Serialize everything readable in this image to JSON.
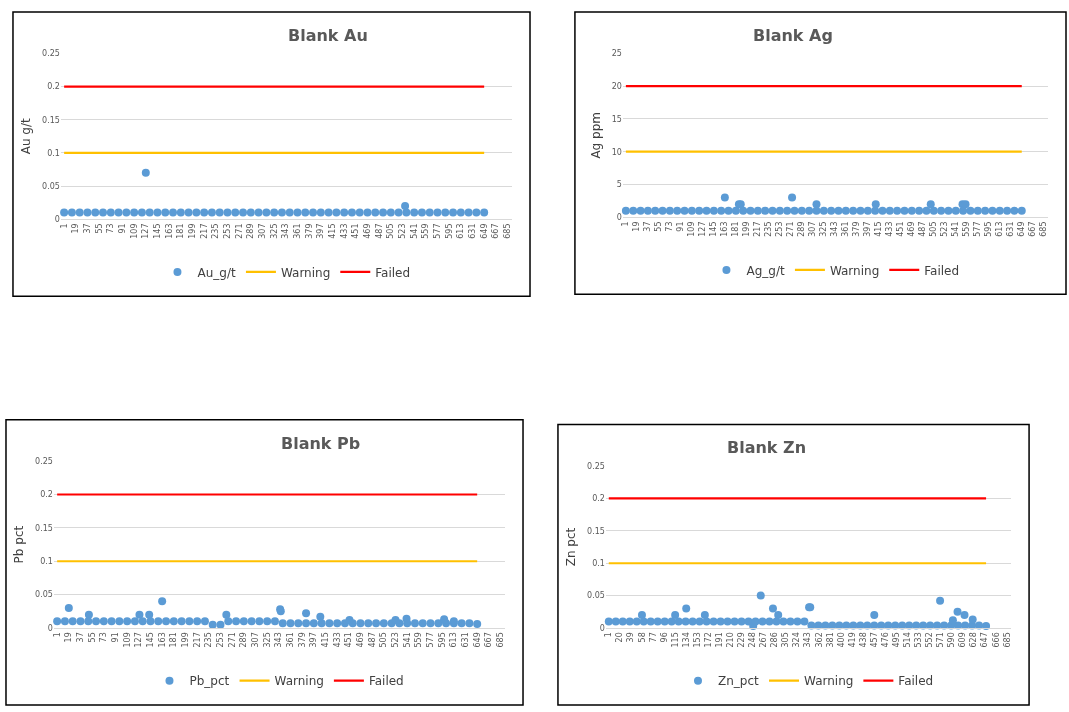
{
  "chart_data": [
    {
      "type": "scatter",
      "title": "Blank Au",
      "ylabel": "Au g/t",
      "xlim": [
        -4,
        692
      ],
      "xticks": [
        1,
        19,
        37,
        55,
        73,
        91,
        109,
        127,
        145,
        163,
        181,
        199,
        217,
        235,
        253,
        271,
        289,
        307,
        325,
        343,
        361,
        379,
        397,
        415,
        433,
        451,
        469,
        487,
        505,
        523,
        541,
        559,
        577,
        595,
        613,
        631,
        649,
        667,
        685
      ],
      "ylim": [
        0,
        0.25
      ],
      "yticks": [
        0,
        0.05,
        0.1,
        0.15,
        0.2,
        0.25
      ],
      "grid": "y",
      "legend": "bottom",
      "series": [
        {
          "name": "Au_g/t",
          "marker": "circle",
          "color": "#5b9bd5",
          "x": [
            1,
            13,
            25,
            37,
            49,
            61,
            73,
            85,
            97,
            109,
            121,
            133,
            145,
            157,
            169,
            181,
            193,
            205,
            217,
            229,
            241,
            253,
            265,
            277,
            289,
            301,
            313,
            325,
            337,
            349,
            361,
            373,
            385,
            397,
            409,
            421,
            433,
            445,
            457,
            469,
            481,
            493,
            505,
            517,
            529,
            541,
            553,
            565,
            577,
            589,
            601,
            613,
            625,
            637,
            649,
            127,
            527
          ],
          "values": [
            0.01,
            0.01,
            0.01,
            0.01,
            0.01,
            0.01,
            0.01,
            0.01,
            0.01,
            0.01,
            0.01,
            0.01,
            0.01,
            0.01,
            0.01,
            0.01,
            0.01,
            0.01,
            0.01,
            0.01,
            0.01,
            0.01,
            0.01,
            0.01,
            0.01,
            0.01,
            0.01,
            0.01,
            0.01,
            0.01,
            0.01,
            0.01,
            0.01,
            0.01,
            0.01,
            0.01,
            0.01,
            0.01,
            0.01,
            0.01,
            0.01,
            0.01,
            0.01,
            0.01,
            0.01,
            0.01,
            0.01,
            0.01,
            0.01,
            0.01,
            0.01,
            0.01,
            0.01,
            0.01,
            0.01,
            0.07,
            0.02
          ]
        },
        {
          "name": "Warning",
          "type": "line",
          "color": "#ffc000",
          "x": [
            1,
            649
          ],
          "values": [
            0.1,
            0.1
          ]
        },
        {
          "name": "Failed",
          "type": "line",
          "color": "#ff0000",
          "x": [
            1,
            649
          ],
          "values": [
            0.2,
            0.2
          ]
        }
      ]
    },
    {
      "type": "scatter",
      "title": "Blank Ag",
      "ylabel": "Ag ppm",
      "xlim": [
        -4,
        692
      ],
      "xticks": [
        1,
        19,
        37,
        55,
        73,
        91,
        109,
        127,
        145,
        163,
        181,
        199,
        217,
        235,
        253,
        271,
        289,
        307,
        325,
        343,
        361,
        379,
        397,
        415,
        433,
        451,
        469,
        487,
        505,
        523,
        541,
        559,
        577,
        595,
        613,
        631,
        649,
        667,
        685
      ],
      "ylim": [
        0,
        25
      ],
      "yticks": [
        0,
        5,
        10,
        15,
        20,
        25
      ],
      "grid": "y",
      "legend": "bottom",
      "series": [
        {
          "name": "Ag_g/t",
          "marker": "circle",
          "color": "#5b9bd5",
          "x": [
            1,
            13,
            25,
            37,
            49,
            61,
            73,
            85,
            97,
            109,
            121,
            133,
            145,
            157,
            169,
            181,
            193,
            205,
            217,
            229,
            241,
            253,
            265,
            277,
            289,
            301,
            313,
            325,
            337,
            349,
            361,
            373,
            385,
            397,
            409,
            421,
            433,
            445,
            457,
            469,
            481,
            493,
            505,
            517,
            529,
            541,
            553,
            565,
            577,
            589,
            601,
            613,
            625,
            637,
            649,
            163,
            186,
            189,
            273,
            313,
            410,
            500,
            552,
            557
          ],
          "values": [
            1,
            1,
            1,
            1,
            1,
            1,
            1,
            1,
            1,
            1,
            1,
            1,
            1,
            1,
            1,
            1,
            1,
            1,
            1,
            1,
            1,
            1,
            1,
            1,
            1,
            1,
            1,
            1,
            1,
            1,
            1,
            1,
            1,
            1,
            1,
            1,
            1,
            1,
            1,
            1,
            1,
            1,
            1,
            1,
            1,
            1,
            1,
            1,
            1,
            1,
            1,
            1,
            1,
            1,
            1,
            3,
            2,
            2,
            3,
            2,
            2,
            2,
            2,
            2
          ]
        },
        {
          "name": "Warning",
          "type": "line",
          "color": "#ffc000",
          "x": [
            1,
            649
          ],
          "values": [
            10,
            10
          ]
        },
        {
          "name": "Failed",
          "type": "line",
          "color": "#ff0000",
          "x": [
            1,
            649
          ],
          "values": [
            20,
            20
          ]
        }
      ]
    },
    {
      "type": "scatter",
      "title": "Blank Pb",
      "ylabel": "Pb pct",
      "xlim": [
        -4,
        692
      ],
      "xticks": [
        1,
        19,
        37,
        55,
        73,
        91,
        109,
        127,
        145,
        163,
        181,
        199,
        217,
        235,
        253,
        271,
        289,
        307,
        325,
        343,
        361,
        379,
        397,
        415,
        433,
        451,
        469,
        487,
        505,
        523,
        541,
        559,
        577,
        595,
        613,
        631,
        649,
        667,
        685
      ],
      "ylim": [
        0,
        0.25
      ],
      "yticks": [
        0,
        0.05,
        0.1,
        0.15,
        0.2,
        0.25
      ],
      "grid": "y",
      "legend": "bottom",
      "series": [
        {
          "name": "Pb_pct",
          "marker": "circle",
          "color": "#5b9bd5",
          "x": [
            1,
            13,
            25,
            37,
            49,
            61,
            73,
            85,
            97,
            109,
            121,
            133,
            145,
            157,
            169,
            181,
            193,
            205,
            217,
            229,
            241,
            253,
            265,
            277,
            289,
            301,
            313,
            325,
            337,
            349,
            361,
            373,
            385,
            397,
            409,
            421,
            433,
            445,
            457,
            469,
            481,
            493,
            505,
            517,
            529,
            541,
            553,
            565,
            577,
            589,
            601,
            613,
            625,
            637,
            649,
            19,
            50,
            128,
            143,
            163,
            262,
            345,
            346,
            385,
            407,
            452,
            523,
            540,
            598,
            613
          ],
          "values": [
            0.01,
            0.01,
            0.01,
            0.01,
            0.01,
            0.01,
            0.01,
            0.01,
            0.01,
            0.01,
            0.01,
            0.01,
            0.01,
            0.01,
            0.01,
            0.01,
            0.01,
            0.01,
            0.01,
            0.01,
            0.005,
            0.005,
            0.01,
            0.01,
            0.01,
            0.01,
            0.01,
            0.01,
            0.01,
            0.007,
            0.007,
            0.007,
            0.007,
            0.007,
            0.007,
            0.007,
            0.007,
            0.007,
            0.007,
            0.007,
            0.007,
            0.007,
            0.007,
            0.007,
            0.007,
            0.007,
            0.007,
            0.007,
            0.007,
            0.007,
            0.007,
            0.007,
            0.007,
            0.007,
            0.006,
            0.03,
            0.02,
            0.02,
            0.02,
            0.04,
            0.02,
            0.028,
            0.025,
            0.022,
            0.017,
            0.012,
            0.012,
            0.014,
            0.013,
            0.01
          ]
        },
        {
          "name": "Warning",
          "type": "line",
          "color": "#ffc000",
          "x": [
            1,
            649
          ],
          "values": [
            0.1,
            0.1
          ]
        },
        {
          "name": "Failed",
          "type": "line",
          "color": "#ff0000",
          "x": [
            1,
            649
          ],
          "values": [
            0.2,
            0.2
          ]
        }
      ]
    },
    {
      "type": "scatter",
      "title": "Blank Zn",
      "ylabel": "Zn pct",
      "xlim": [
        -4,
        692
      ],
      "xticks": [
        1,
        20,
        39,
        58,
        77,
        96,
        115,
        134,
        153,
        172,
        191,
        210,
        229,
        248,
        267,
        286,
        305,
        324,
        343,
        362,
        381,
        400,
        419,
        438,
        457,
        476,
        495,
        514,
        533,
        552,
        571,
        590,
        609,
        628,
        647,
        666,
        685
      ],
      "ylim": [
        0,
        0.25
      ],
      "yticks": [
        0,
        0.05,
        0.1,
        0.15,
        0.2,
        0.25
      ],
      "grid": "y",
      "legend": "bottom",
      "series": [
        {
          "name": "Zn_pct",
          "marker": "circle",
          "color": "#5b9bd5",
          "x": [
            1,
            13,
            25,
            37,
            49,
            61,
            73,
            85,
            97,
            109,
            121,
            133,
            145,
            157,
            169,
            181,
            193,
            205,
            217,
            229,
            241,
            249,
            253,
            265,
            277,
            289,
            301,
            313,
            325,
            337,
            349,
            361,
            373,
            385,
            397,
            409,
            421,
            433,
            445,
            457,
            469,
            481,
            493,
            505,
            517,
            529,
            541,
            553,
            565,
            577,
            589,
            601,
            613,
            625,
            637,
            649,
            58,
            115,
            134,
            166,
            262,
            283,
            292,
            345,
            347,
            457,
            570,
            592,
            600,
            612,
            626
          ],
          "values": [
            0.01,
            0.01,
            0.01,
            0.01,
            0.01,
            0.01,
            0.01,
            0.01,
            0.01,
            0.01,
            0.01,
            0.01,
            0.01,
            0.01,
            0.01,
            0.01,
            0.01,
            0.01,
            0.01,
            0.01,
            0.01,
            0.003,
            0.01,
            0.01,
            0.01,
            0.01,
            0.01,
            0.01,
            0.01,
            0.01,
            0.004,
            0.004,
            0.004,
            0.004,
            0.004,
            0.004,
            0.004,
            0.004,
            0.004,
            0.004,
            0.004,
            0.004,
            0.004,
            0.004,
            0.004,
            0.004,
            0.004,
            0.004,
            0.004,
            0.004,
            0.004,
            0.004,
            0.004,
            0.004,
            0.004,
            0.003,
            0.02,
            0.02,
            0.03,
            0.02,
            0.05,
            0.03,
            0.02,
            0.032,
            0.032,
            0.02,
            0.042,
            0.012,
            0.025,
            0.02,
            0.013
          ]
        },
        {
          "name": "Warning",
          "type": "line",
          "color": "#ffc000",
          "x": [
            1,
            649
          ],
          "values": [
            0.1,
            0.1
          ]
        },
        {
          "name": "Failed",
          "type": "line",
          "color": "#ff0000",
          "x": [
            1,
            649
          ],
          "values": [
            0.2,
            0.2
          ]
        }
      ]
    }
  ]
}
